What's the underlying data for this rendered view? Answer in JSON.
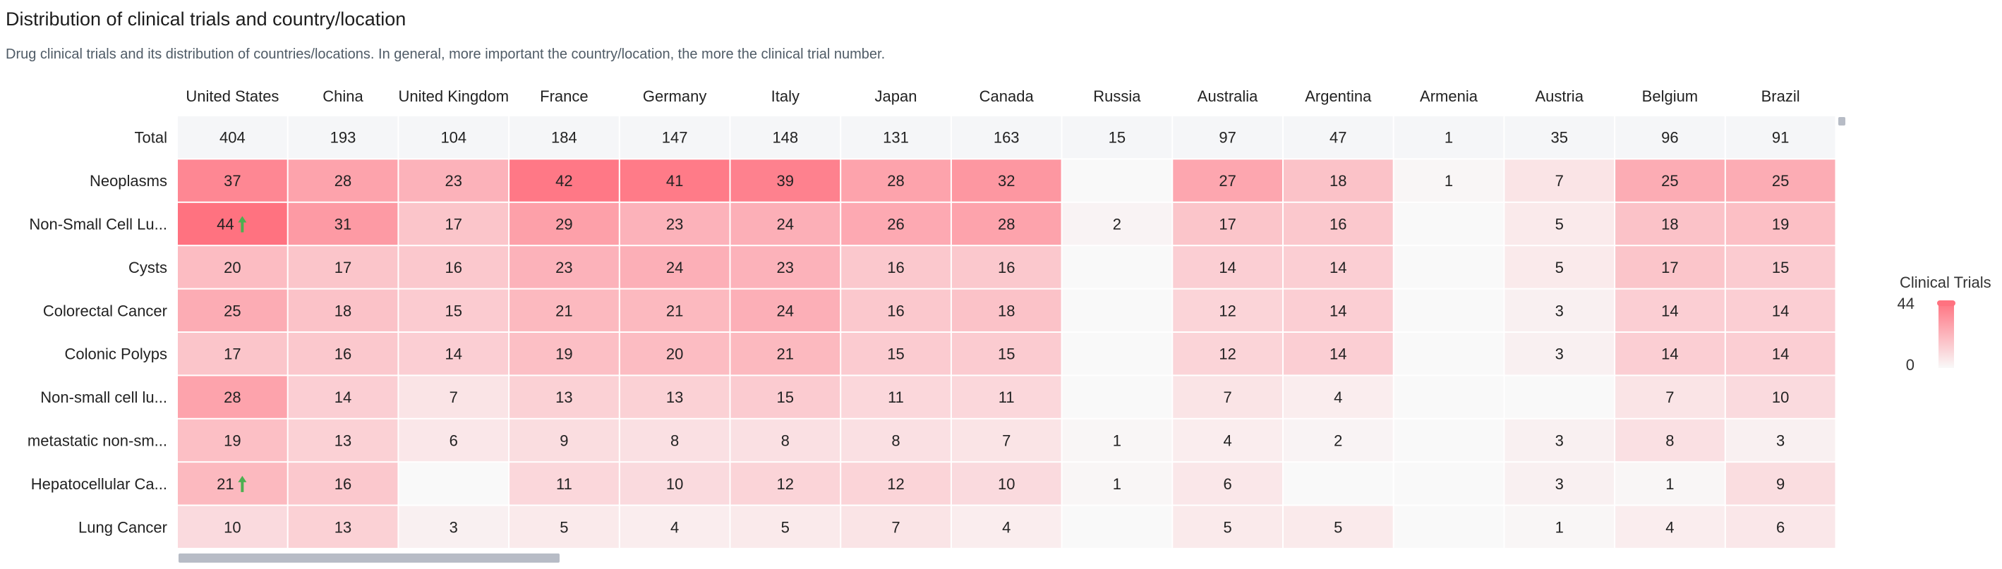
{
  "title": "Distribution of clinical trials and country/location",
  "subtitle": "Drug clinical trials and its distribution of countries/locations. In general, more important the country/location, the more the clinical trial number.",
  "chart_data": {
    "type": "heatmap",
    "columns": [
      "United States",
      "China",
      "United Kingdom",
      "France",
      "Germany",
      "Italy",
      "Japan",
      "Canada",
      "Russia",
      "Australia",
      "Argentina",
      "Armenia",
      "Austria",
      "Belgium",
      "Brazil"
    ],
    "total_label": "Total",
    "totals": [
      404,
      193,
      104,
      184,
      147,
      148,
      131,
      163,
      15,
      97,
      47,
      1,
      35,
      96,
      91
    ],
    "rows": [
      {
        "label": "Neoplasms",
        "values": [
          37,
          28,
          23,
          42,
          41,
          39,
          28,
          32,
          null,
          27,
          18,
          1,
          7,
          25,
          25
        ]
      },
      {
        "label": "Non-Small Cell Lu...",
        "values": [
          44,
          31,
          17,
          29,
          23,
          24,
          26,
          28,
          2,
          17,
          16,
          null,
          5,
          18,
          19
        ]
      },
      {
        "label": "Cysts",
        "values": [
          20,
          17,
          16,
          23,
          24,
          23,
          16,
          16,
          null,
          14,
          14,
          null,
          5,
          17,
          15
        ]
      },
      {
        "label": "Colorectal Cancer",
        "values": [
          25,
          18,
          15,
          21,
          21,
          24,
          16,
          18,
          null,
          12,
          14,
          null,
          3,
          14,
          14
        ]
      },
      {
        "label": "Colonic Polyps",
        "values": [
          17,
          16,
          14,
          19,
          20,
          21,
          15,
          15,
          null,
          12,
          14,
          null,
          3,
          14,
          14
        ]
      },
      {
        "label": "Non-small cell lu...",
        "values": [
          28,
          14,
          7,
          13,
          13,
          15,
          11,
          11,
          null,
          7,
          4,
          null,
          null,
          7,
          10
        ]
      },
      {
        "label": "metastatic non-sm...",
        "values": [
          19,
          13,
          6,
          9,
          8,
          8,
          8,
          7,
          1,
          4,
          2,
          null,
          3,
          8,
          3
        ]
      },
      {
        "label": "Hepatocellular Ca...",
        "values": [
          21,
          16,
          null,
          11,
          10,
          12,
          12,
          10,
          1,
          6,
          null,
          null,
          3,
          1,
          9
        ]
      },
      {
        "label": "Lung Cancer",
        "values": [
          10,
          13,
          3,
          5,
          4,
          5,
          7,
          4,
          null,
          5,
          5,
          null,
          1,
          4,
          6
        ]
      }
    ],
    "highlighted_cells": [
      {
        "row": 1,
        "col": 0,
        "icon": "up-arrow-icon"
      },
      {
        "row": 7,
        "col": 0,
        "icon": "up-arrow-icon"
      }
    ],
    "color_scale": {
      "min": 0,
      "max": 44,
      "low_color": "#f9f9f9",
      "high_color": "#ff7280"
    },
    "total_row_color": "#f5f6f8",
    "arrow_color": "#4caf50",
    "legend": {
      "title": "Clinical Trials",
      "max_label": "44",
      "min_label": "0",
      "position": "right"
    }
  }
}
